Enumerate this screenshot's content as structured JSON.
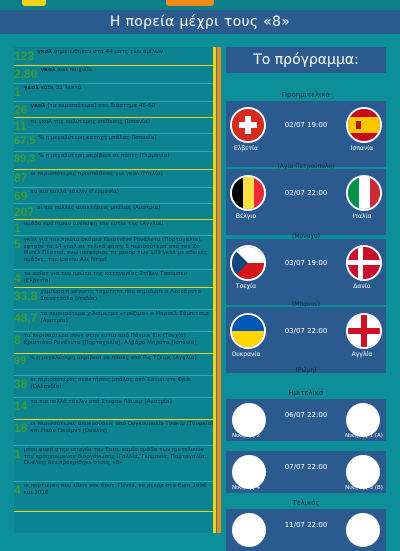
{
  "header": {
    "title": "Η πορεία μέχρι τους «8»"
  },
  "stats": [
    {
      "num": "123",
      "pre": "",
      "bold": "γκολ",
      "text": " σημειώθηκαν στα 44 ματς των ομίλων"
    },
    {
      "num": "2,80",
      "pre": "",
      "bold": "γκολ",
      "text": " ανά παιχνίδι"
    },
    {
      "num": "1",
      "pre": "",
      "bold": "γκολ",
      "text": " κάθε 32 λεπτά"
    },
    {
      "num": "26",
      "pre": "",
      "bold": "γκολ",
      "text": " (τα περισσότερα) στο διάστημα 46-60'"
    },
    {
      "num": "11",
      "pre": "",
      "bold": "",
      "text": "τα γκολ της καλύτερης επίθεσης (Ισπανία)"
    },
    {
      "num": "67,5",
      "pre": "",
      "bold": "",
      "text": "% η μεγαλύτερη κατοχή μπάλας (Ισπανία)"
    },
    {
      "num": "89,3",
      "pre": "",
      "bold": "",
      "text": "% η μεγαλύτερη ακρίβεια σε πάσες (Γερμανία)"
    },
    {
      "num": "87",
      "pre": "",
      "bold": "",
      "text": "οι περισσότερες προσπάθειες για γκολ (Ιταλία)"
    },
    {
      "num": "69",
      "pre": "",
      "bold": "",
      "text": "τα πιο πολλά τάκλιν (Γερμανία)"
    },
    {
      "num": "207",
      "pre": "",
      "bold": "",
      "text": "οι πιο πολλές ανακτήσεις μπάλας (Αυστρία)"
    },
    {
      "num": "1",
      "pre": "",
      "bold": "",
      "text": "ομάδα κράτησαν ανέπαφη την εστία της (Αγγλία)"
    },
    {
      "num": "5",
      "pre": "",
      "bold": "",
      "text": "γκολ για τον πρώτο σκόρερ Κριστιάνο Ρονάλντο (Πορτογαλία), έφτασε τα 14 γκολ σε τελικά φάση, 5 περισσότερα από τον Ζο Μισέλ Πλατινί, ενώ ισοφάρισε τα ρεκόρ των 109 γκολ με εθνικές ομάδες, του Ιρανού Αλι Νταεϊ"
    },
    {
      "num": "4",
      "pre": "",
      "bold": "",
      "text": "τα ασίστ για τον πρώτο της κατηγορίας Στίβεν Τσούμπερ (Ελβετία)"
    },
    {
      "num": "33,8",
      "pre": "",
      "bold": "",
      "text": " χλμ/ώρα η μέγιστη ταχύτητα που σημείωσε ο Λεονάρντο Σπινατσόλα (Ιταλία)"
    },
    {
      "num": "48,7",
      "pre": "",
      "bold": "",
      "text": "τα περισσότερα χιλιόμετρα «τρέξιμο» ο Μαρσέλ Σάμπιτσερ (Αυστρία)"
    },
    {
      "num": "8",
      "pre": "",
      "bold": "",
      "text": "τα περισσότερα σουτ στην εστία από Πάτρικ Σικ (Τσεχία), Κριστιάνο Ρονάλντο (Πορτογαλία), Αλβάρο Μοράτα (Ισπανία)"
    },
    {
      "num": "99",
      "pre": "",
      "bold": "",
      "text": "% η μεγαλύτερη ακρίβεια σε πάσες από Ρις Τζέιμς (Αγγλία)"
    },
    {
      "num": "38",
      "pre": "",
      "bold": "",
      "text": "οι περισσότερες ανακτήσεις μπάλας από Σαουρ ντε Φράι (Ολλανδία)"
    },
    {
      "num": "14",
      "pre": "",
      "bold": "",
      "text": "τα πιο πολλά τάκλιν από Στεφαν Λάινερ (Αυστρία)"
    },
    {
      "num": "18",
      "pre": "",
      "bold": "",
      "text": "οι περισσότερες αποκρούσεις από Ουγκουρσεϊν Τσακίρ (Τουρκία) και Ηαάν Γουόρντ (Ουαλία)"
    },
    {
      "num": "1",
      "pre": "",
      "bold": "",
      "text": "μόνο φορά στην ιστορία του Euro, καμία ομάδα των ημιτελικών του προηγούμενου διοργάνωσης (Γαλλία, Γερμανία, Πορτογαλία, Ουαλία) δεν προκρίθηκε στους «8»"
    },
    {
      "num": "4",
      "pre": "",
      "bold": "",
      "text": "οι πορτιέρες που έδειν νοκ άουτ. Πέντε, το ρεκόρ στα Euro 1996 και 2016"
    }
  ],
  "program": {
    "title": "Το πρόγραμμα:",
    "quarter_label": "Προημιτελικά",
    "semi_label": "Ημιτελικά",
    "final_label": "Τελικός",
    "quarters": [
      {
        "home": "Ελβετία",
        "away": "Ισπανία",
        "time": "02/07 19:00",
        "venue": "(Αγία Πετρούπολη)",
        "home_flag": "switzerland",
        "away_flag": "spain"
      },
      {
        "home": "Βέλγιο",
        "away": "Ιταλία",
        "time": "02/07 22:00",
        "venue": "(Μόναχο)",
        "home_flag": "belgium",
        "away_flag": "italy"
      },
      {
        "home": "Τσεχία",
        "away": "Δανία",
        "time": "03/07 19:00",
        "venue": "(Μπακού)",
        "home_flag": "czech",
        "away_flag": "denmark"
      },
      {
        "home": "Ουκρανία",
        "away": "Αγγλία",
        "time": "03/07 22:00",
        "venue": "(Ρώμη)",
        "home_flag": "ukraine",
        "away_flag": "england"
      }
    ],
    "semis": [
      {
        "home": "Νικητής 2",
        "away": "Νικητής 1 (Α)",
        "time": "06/07 22:00"
      },
      {
        "home": "Νικητής 4",
        "away": "Νικητής 3 (Β)",
        "time": "07/07 22:00"
      }
    ],
    "final": {
      "time": "11/07 22:00"
    }
  }
}
